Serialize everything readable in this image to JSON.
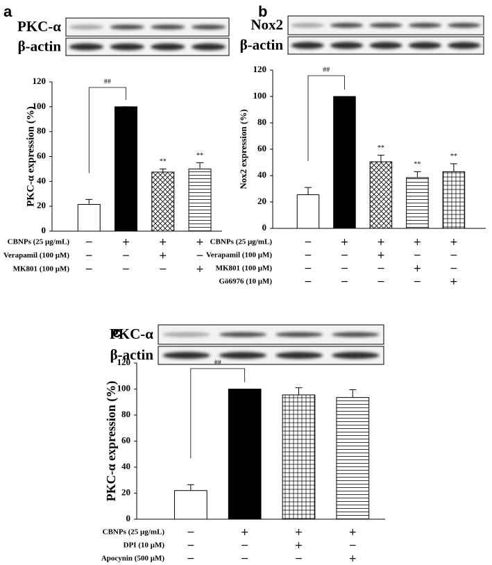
{
  "chart_data": [
    {
      "type": "bar",
      "panel": "a",
      "blot_labels": [
        "PKC-α",
        "β-actin"
      ],
      "ylabel": "PKC-α expression (%)",
      "values": [
        21.5,
        100,
        47.5,
        50
      ],
      "errors": [
        4,
        0,
        2.5,
        5
      ],
      "patterns": [
        "none",
        "solid",
        "crosshatch",
        "hlines"
      ],
      "ylim": [
        0,
        120
      ],
      "yticks": [
        0,
        20,
        40,
        60,
        80,
        100,
        120
      ],
      "bracket_label": "##",
      "significance": [
        null,
        null,
        "**",
        "**"
      ],
      "treatments": [
        {
          "name": "CBNPs (25 μg/mL)",
          "signs": [
            "−",
            "+",
            "+",
            "+"
          ]
        },
        {
          "name": "Verapamil (100 μM)",
          "signs": [
            "−",
            "−",
            "+",
            "−"
          ]
        },
        {
          "name": "MK801 (100 μM)",
          "signs": [
            "−",
            "−",
            "−",
            "+"
          ]
        }
      ]
    },
    {
      "type": "bar",
      "panel": "b",
      "blot_labels": [
        "Nox2",
        "β-actin"
      ],
      "ylabel": "Nox2 expression (%)",
      "values": [
        25.5,
        100,
        50.5,
        38.5,
        43
      ],
      "errors": [
        5.5,
        0,
        5,
        4.5,
        6
      ],
      "patterns": [
        "none",
        "solid",
        "crosshatch",
        "hlines",
        "grid"
      ],
      "ylim": [
        0,
        120
      ],
      "yticks": [
        0,
        20,
        40,
        60,
        80,
        100,
        120
      ],
      "bracket_label": "##",
      "significance": [
        null,
        null,
        "**",
        "**",
        "**"
      ],
      "treatments": [
        {
          "name": "CBNPs (25 μg/mL)",
          "signs": [
            "−",
            "+",
            "+",
            "+",
            "+"
          ]
        },
        {
          "name": "Verapamil (100 μM)",
          "signs": [
            "−",
            "−",
            "+",
            "−",
            "−"
          ]
        },
        {
          "name": "MK801 (100 μM)",
          "signs": [
            "−",
            "−",
            "−",
            "+",
            "−"
          ]
        },
        {
          "name": "Gö6976 (10 μM)",
          "signs": [
            "−",
            "−",
            "−",
            "−",
            "+"
          ]
        }
      ]
    },
    {
      "type": "bar",
      "panel": "c",
      "blot_labels": [
        "PKC-α",
        "β-actin"
      ],
      "ylabel": "PKC-α expression (%)",
      "values": [
        22,
        100,
        95.5,
        93.5
      ],
      "errors": [
        4.5,
        0,
        5.5,
        6
      ],
      "patterns": [
        "none",
        "solid",
        "grid",
        "hlines"
      ],
      "ylim": [
        0,
        120
      ],
      "yticks": [
        0,
        20,
        40,
        60,
        80,
        100,
        120
      ],
      "bracket_label": "##",
      "significance": [
        null,
        null,
        null,
        null
      ],
      "treatments": [
        {
          "name": "CBNPs (25 μg/mL)",
          "signs": [
            "−",
            "+",
            "+",
            "+"
          ]
        },
        {
          "name": "DPI (10 μM)",
          "signs": [
            "−",
            "−",
            "+",
            "−"
          ]
        },
        {
          "name": "Apocynin (500 μM)",
          "signs": [
            "−",
            "−",
            "−",
            "+"
          ]
        }
      ]
    }
  ]
}
